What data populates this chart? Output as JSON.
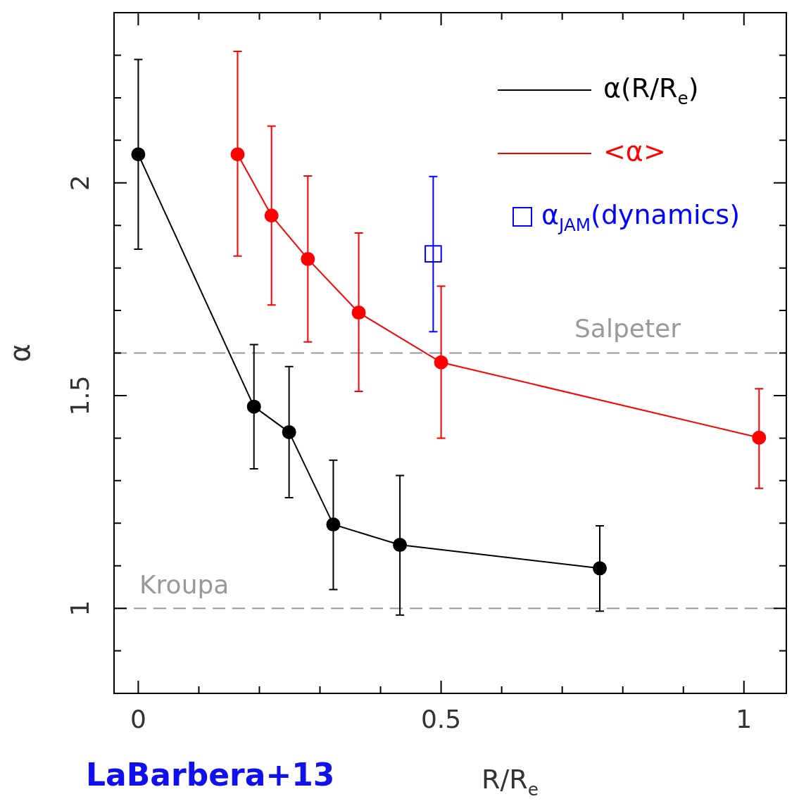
{
  "chart_data": {
    "type": "line",
    "xlabel": "R/R$_{e}$",
    "ylabel": "α",
    "xlim": [
      -0.04,
      1.07
    ],
    "ylim": [
      0.8,
      2.4
    ],
    "xticks": [
      0,
      {
        "value": 0.1,
        "label": null
      },
      {
        "value": 0.2,
        "label": null
      },
      {
        "value": 0.3,
        "label": null
      },
      {
        "value": 0.4,
        "label": null
      },
      0.5,
      {
        "value": 0.6,
        "label": null
      },
      {
        "value": 0.7,
        "label": null
      },
      {
        "value": 0.8,
        "label": null
      },
      {
        "value": 0.9,
        "label": null
      },
      1
    ],
    "yticks": [
      {
        "value": 0.9,
        "label": null
      },
      1,
      {
        "value": 1.1,
        "label": null
      },
      {
        "value": 1.2,
        "label": null
      },
      {
        "value": 1.3,
        "label": null
      },
      {
        "value": 1.4,
        "label": null
      },
      1.5,
      {
        "value": 1.6,
        "label": null
      },
      {
        "value": 1.7,
        "label": null
      },
      {
        "value": 1.8,
        "label": null
      },
      {
        "value": 1.9,
        "label": null
      },
      2,
      {
        "value": 2.1,
        "label": null
      },
      {
        "value": 2.2,
        "label": null
      },
      {
        "value": 2.3,
        "label": null
      }
    ],
    "legend": "top right",
    "series": [
      {
        "name": "α(R/R$_{e}$)",
        "color": "#000000",
        "marker": "circle",
        "x": [
          0,
          0.191,
          0.249,
          0.322,
          0.432,
          0.762
        ],
        "values": [
          2.067,
          1.474,
          1.414,
          1.197,
          1.149,
          1.094
        ],
        "errors": [
          [
            1.844,
            2.29
          ],
          [
            1.328,
            1.62
          ],
          [
            1.26,
            1.568
          ],
          [
            1.044,
            1.348
          ],
          [
            0.984,
            1.312
          ],
          [
            0.993,
            1.194
          ]
        ]
      },
      {
        "name": "<α>",
        "color": "#ff0000",
        "marker": "circle",
        "x": [
          0.164,
          0.22,
          0.28,
          0.364,
          0.5,
          1.025
        ],
        "values": [
          2.067,
          1.923,
          1.821,
          1.695,
          1.578,
          1.401
        ],
        "errors": [
          [
            1.828,
            2.309
          ],
          [
            1.713,
            2.133
          ],
          [
            1.626,
            2.016
          ],
          [
            1.51,
            1.882
          ],
          [
            1.4,
            1.757
          ],
          [
            1.282,
            1.516
          ]
        ]
      },
      {
        "name": "α$_{JAM}$(dynamics)",
        "color": "#0000ff",
        "type": "scatter",
        "marker": "square",
        "x": [
          0.487
        ],
        "values": [
          1.833
        ],
        "errors": [
          [
            1.65,
            2.015
          ]
        ]
      }
    ],
    "ref_lines": [
      {
        "axis": "y",
        "value": 1.6,
        "label": "Salpeter",
        "color": "#999999",
        "line_style": "dashed"
      },
      {
        "axis": "y",
        "value": 1,
        "label": "Kroupa",
        "color": "#999999",
        "line_style": "dashed"
      }
    ],
    "annotations": [
      "LaBarbera+13"
    ]
  }
}
